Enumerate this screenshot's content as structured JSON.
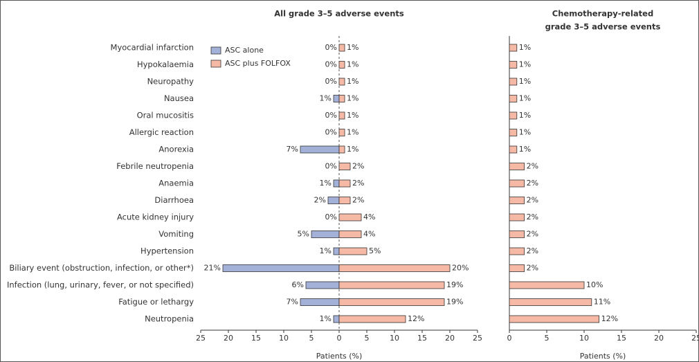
{
  "chart_data": [
    {
      "type": "bar",
      "orientation": "horizontal",
      "title": "All grade 3–5 adverse events",
      "xlabel": "Patients (%)",
      "categories": [
        "Myocardial infarction",
        "Hypokalaemia",
        "Neuropathy",
        "Nausea",
        "Oral mucositis",
        "Allergic reaction",
        "Anorexia",
        "Febrile neutropenia",
        "Anaemia",
        "Diarrhoea",
        "Acute kidney injury",
        "Vomiting",
        "Hypertension",
        "Biliary event (obstruction, infection, or other*)",
        "Infection (lung, urinary, fever, or not specified)",
        "Fatigue or lethargy",
        "Neutropenia"
      ],
      "series": [
        {
          "name": "ASC alone",
          "color": "#a3b1d9",
          "side": "left",
          "values": [
            0,
            0,
            0,
            1,
            0,
            0,
            7,
            0,
            1,
            2,
            0,
            5,
            1,
            21,
            6,
            7,
            1
          ],
          "value_labels": [
            "0%",
            "0%",
            "0%",
            "1%",
            "0%",
            "0%",
            "7%",
            "0%",
            "1%",
            "2%",
            "0%",
            "5%",
            "1%",
            "21%",
            "6%",
            "7%",
            "1%"
          ]
        },
        {
          "name": "ASC plus FOLFOX",
          "color": "#f5b9a5",
          "side": "right",
          "values": [
            1,
            1,
            1,
            1,
            1,
            1,
            1,
            2,
            2,
            2,
            4,
            4,
            5,
            20,
            19,
            19,
            12
          ],
          "value_labels": [
            "1%",
            "1%",
            "1%",
            "1%",
            "1%",
            "1%",
            "1%",
            "2%",
            "2%",
            "2%",
            "4%",
            "4%",
            "5%",
            "20%",
            "19%",
            "19%",
            "12%"
          ]
        }
      ],
      "xlim": [
        -25,
        25
      ],
      "xticks": [
        {
          "value": -25,
          "label": "25"
        },
        {
          "value": -20,
          "label": "20"
        },
        {
          "value": -15,
          "label": "15"
        },
        {
          "value": -10,
          "label": "10"
        },
        {
          "value": -5,
          "label": "5"
        },
        0,
        5,
        10,
        15,
        20,
        25
      ],
      "legend": "upper left"
    },
    {
      "type": "bar",
      "orientation": "horizontal",
      "title": [
        "Chemotherapy-related",
        "grade 3–5 adverse events"
      ],
      "xlabel": "Patients (%)",
      "series": [
        {
          "color": "#f5b9a5",
          "side": "right",
          "values": [
            1,
            1,
            1,
            1,
            1,
            1,
            1,
            2,
            2,
            2,
            2,
            2,
            2,
            2,
            10,
            11,
            12
          ],
          "value_labels": [
            "1%",
            "1%",
            "1%",
            "1%",
            "1%",
            "1%",
            "1%",
            "2%",
            "2%",
            "2%",
            "2%",
            "2%",
            "2%",
            "2%",
            "10%",
            "11%",
            "12%"
          ]
        }
      ],
      "xlim": [
        0,
        25
      ],
      "xticks": [
        0,
        5,
        10,
        15,
        20,
        25
      ]
    }
  ]
}
